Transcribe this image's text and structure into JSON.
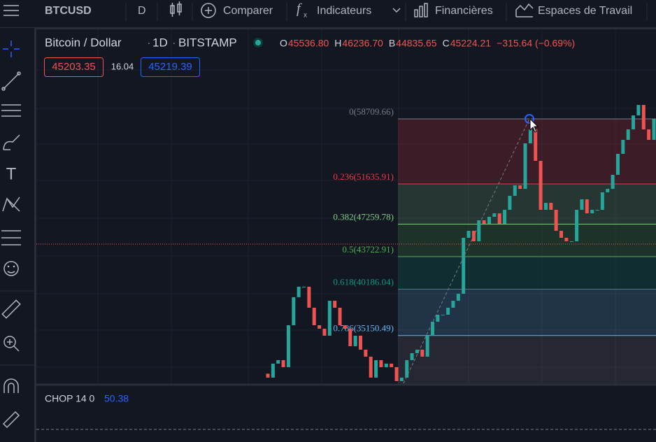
{
  "toolbar": {
    "symbol": "BTCUSD",
    "interval": "D",
    "compare": "Comparer",
    "indicators": "Indicateurs",
    "financials": "Financières",
    "workspaces": "Espaces de Travail"
  },
  "legend": {
    "name": "Bitcoin / Dollar",
    "period": "1D",
    "exchange": "BITSTAMP",
    "ohlc": [
      {
        "label": "O",
        "value": "45536.80"
      },
      {
        "label": "H",
        "value": "46236.70"
      },
      {
        "label": "B",
        "value": "44835.65"
      },
      {
        "label": "C",
        "value": "45224.21"
      }
    ],
    "change": "−315.64 (−0.69%)",
    "bid": "45203.35",
    "spread": "16.04",
    "ask": "45219.39"
  },
  "indicator": {
    "name": "CHOP 14 0",
    "value": "50.38"
  },
  "chart_data": {
    "type": "candlestick",
    "ylim": [
      29880,
      68450
    ],
    "up_color": "#26a69a",
    "down_color": "#ef5350",
    "open": [
      31000,
      30570,
      32090,
      32470,
      31710,
      36270,
      39320,
      40460,
      40460,
      38170,
      36270,
      35890,
      35130,
      38930,
      38170,
      36270,
      35890,
      33990,
      35130,
      33610,
      32850,
      30570,
      32470,
      31710,
      32090,
      31710,
      30190,
      30570,
      32470,
      33230,
      33610,
      32850,
      35130,
      36650,
      37410,
      37410,
      38170,
      38930,
      39690,
      45780,
      46540,
      45400,
      47680,
      47300,
      48060,
      48440,
      47300,
      48820,
      50340,
      51480,
      51100,
      56050,
      57570,
      54150,
      48820,
      49580,
      48820,
      46540,
      45780,
      45400,
      45400,
      48820,
      49960,
      48440,
      48820,
      48820,
      50720,
      51100,
      52630,
      54910,
      56430,
      57570,
      59090,
      60230,
      57570,
      56430
    ],
    "close": [
      30570,
      32090,
      32470,
      31710,
      36270,
      39320,
      40460,
      40460,
      38170,
      36270,
      35890,
      35130,
      38930,
      38170,
      36270,
      35890,
      33990,
      35130,
      33610,
      32850,
      30570,
      32470,
      31710,
      32090,
      31710,
      30190,
      30570,
      32470,
      33230,
      33610,
      32850,
      35130,
      36650,
      37410,
      37410,
      38170,
      38930,
      39690,
      45780,
      46540,
      45400,
      47680,
      47300,
      48060,
      48440,
      47300,
      48820,
      50340,
      51480,
      51100,
      56050,
      57570,
      54150,
      48820,
      49580,
      48820,
      46540,
      45780,
      45400,
      45400,
      48820,
      49960,
      48440,
      48820,
      48820,
      50720,
      51100,
      52630,
      54910,
      56430,
      57570,
      59090,
      60230,
      57570,
      56430,
      58710
    ],
    "fib_levels": [
      {
        "value": 58709.66,
        "label": "0(58709.66)",
        "color": "#787b86"
      },
      {
        "value": 51635.91,
        "label": "0.236(51635.91)",
        "color": "#f23645"
      },
      {
        "value": 47259.78,
        "label": "0.382(47259.78)",
        "color": "#81c784"
      },
      {
        "value": 43722.91,
        "label": "0.5(43722.91)",
        "color": "#4caf50"
      },
      {
        "value": 40186.04,
        "label": "0.618(40186.04)",
        "color": "#089981"
      },
      {
        "value": 35150.49,
        "label": "0.786(35150.49)",
        "color": "#64b5f6"
      }
    ]
  }
}
